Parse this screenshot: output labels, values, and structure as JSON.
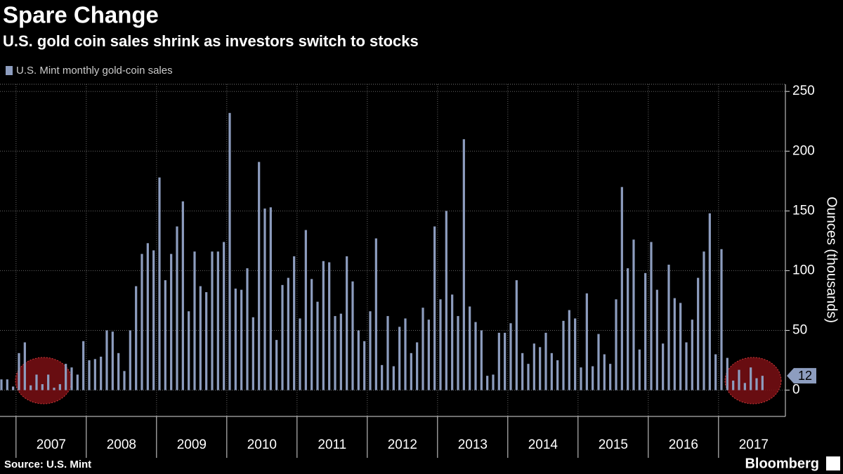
{
  "chart_data": {
    "type": "bar",
    "title": "Spare Change",
    "subtitle": "U.S. gold coin sales shrink as investors switch to stocks",
    "y_label": "Ounces (thousands)",
    "source": "Source: U.S. Mint",
    "brand": "Bloomberg",
    "categories": [
      null,
      null,
      null,
      "2007",
      null,
      null,
      null,
      null,
      null,
      null,
      null,
      null,
      null,
      null,
      null,
      "2008",
      null,
      null,
      null,
      null,
      null,
      null,
      null,
      null,
      null,
      null,
      null,
      "2009",
      null,
      null,
      null,
      null,
      null,
      null,
      null,
      null,
      null,
      null,
      null,
      "2010",
      null,
      null,
      null,
      null,
      null,
      null,
      null,
      null,
      null,
      null,
      null,
      "2011",
      null,
      null,
      null,
      null,
      null,
      null,
      null,
      null,
      null,
      null,
      null,
      "2012",
      null,
      null,
      null,
      null,
      null,
      null,
      null,
      null,
      null,
      null,
      null,
      "2013",
      null,
      null,
      null,
      null,
      null,
      null,
      null,
      null,
      null,
      null,
      null,
      "2014",
      null,
      null,
      null,
      null,
      null,
      null,
      null,
      null,
      null,
      null,
      null,
      "2015",
      null,
      null,
      null,
      null,
      null,
      null,
      null,
      null,
      null,
      null,
      null,
      "2016",
      null,
      null,
      null,
      null,
      null,
      null,
      null,
      null,
      null,
      null,
      null,
      "2017",
      null,
      null,
      null,
      null,
      null,
      null,
      null
    ],
    "series": [
      {
        "name": "U.S. Mint monthly gold-coin sales",
        "color": "#8d9dbf",
        "values": [
          9,
          9,
          3,
          31,
          40,
          4,
          13,
          5,
          13,
          2,
          5,
          22,
          19,
          13,
          41,
          25,
          26,
          28,
          50,
          49,
          31,
          16,
          50,
          87,
          114,
          123,
          117,
          178,
          92,
          114,
          137,
          158,
          66,
          116,
          87,
          82,
          116,
          116,
          124,
          232,
          85,
          84,
          102,
          61,
          191,
          152,
          153,
          42,
          88,
          94,
          112,
          60,
          134,
          93,
          74,
          108,
          107,
          62,
          64,
          112,
          91,
          50,
          41,
          66,
          127,
          21,
          62,
          20,
          53,
          60,
          31,
          40,
          69,
          59,
          137,
          76,
          150,
          80,
          62,
          210,
          70,
          57,
          50,
          12,
          13,
          48,
          48,
          56,
          92,
          31,
          22,
          39,
          36,
          48,
          31,
          25,
          58,
          67,
          60,
          19,
          81,
          20,
          47,
          30,
          22,
          76,
          170,
          102,
          126,
          34,
          98,
          124,
          84,
          39,
          105,
          77,
          73,
          40,
          59,
          94,
          116,
          148,
          30,
          118,
          27,
          8,
          17,
          6,
          19,
          10,
          12
        ]
      }
    ],
    "ylim": [
      -22,
      256
    ],
    "yticks": [
      0,
      50,
      100,
      150,
      200,
      250
    ],
    "grid": true
  }
}
